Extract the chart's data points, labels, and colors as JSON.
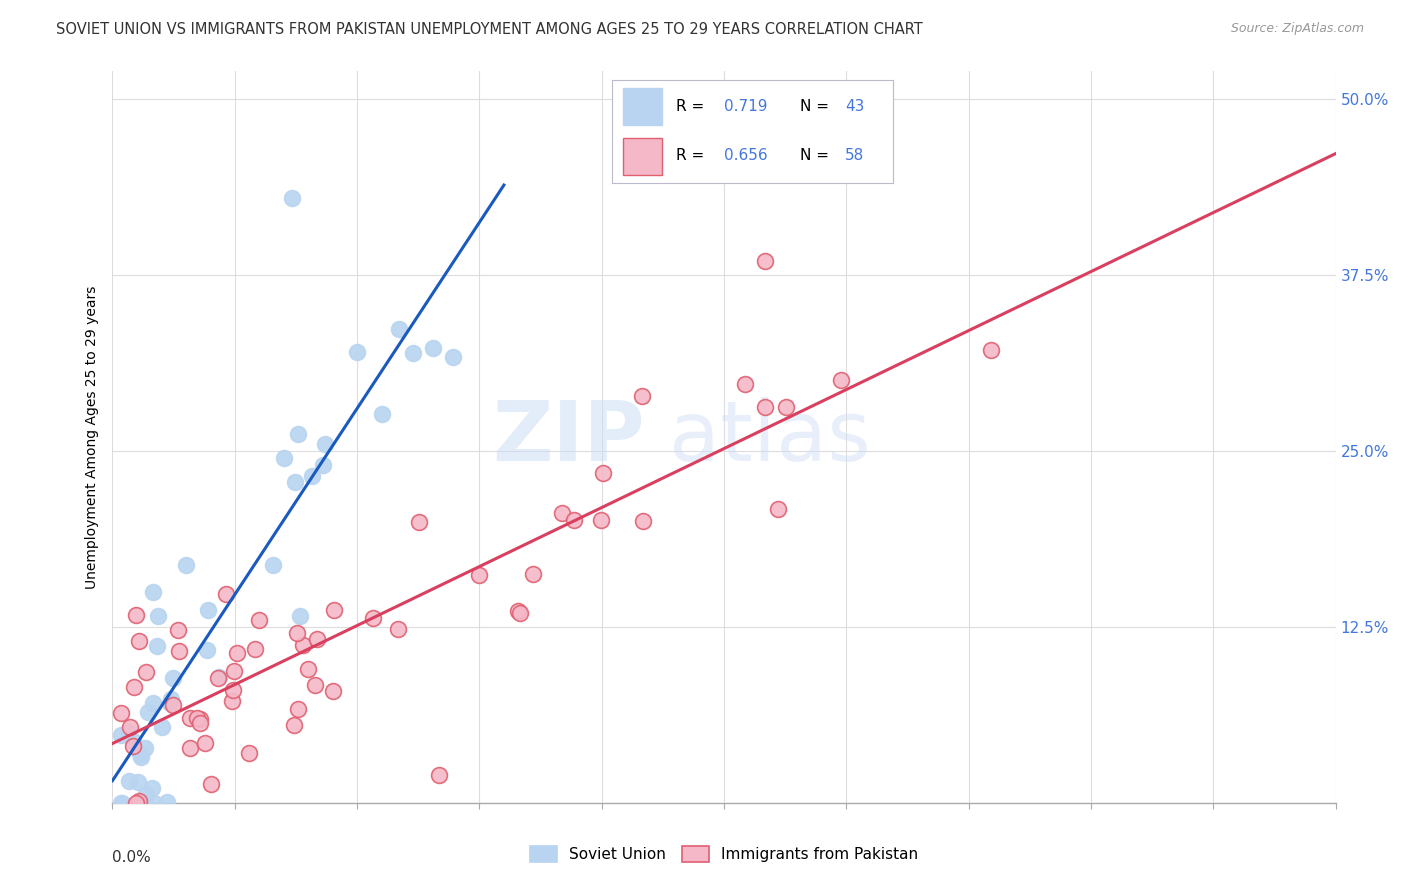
{
  "title": "SOVIET UNION VS IMMIGRANTS FROM PAKISTAN UNEMPLOYMENT AMONG AGES 25 TO 29 YEARS CORRELATION CHART",
  "source": "Source: ZipAtlas.com",
  "ylabel": "Unemployment Among Ages 25 to 29 years",
  "xmin": 0.0,
  "xmax": 0.15,
  "ymin": 0.0,
  "ymax": 0.52,
  "blue_R": 0.719,
  "blue_N": 43,
  "pink_R": 0.656,
  "pink_N": 58,
  "blue_fill": "#b8d4f0",
  "blue_edge": "#b8d4f0",
  "blue_line": "#1a5abf",
  "pink_fill": "#f5b8c8",
  "pink_edge": "#e06070",
  "pink_line": "#d94060",
  "label_blue": "Soviet Union",
  "label_pink": "Immigrants from Pakistan",
  "accent_color": "#4477dd",
  "grid_color": "#dddddd",
  "bg_color": "#ffffff",
  "title_color": "#333333",
  "source_color": "#999999",
  "ytick_color": "#4477dd",
  "xtick_label_color": "#333333"
}
